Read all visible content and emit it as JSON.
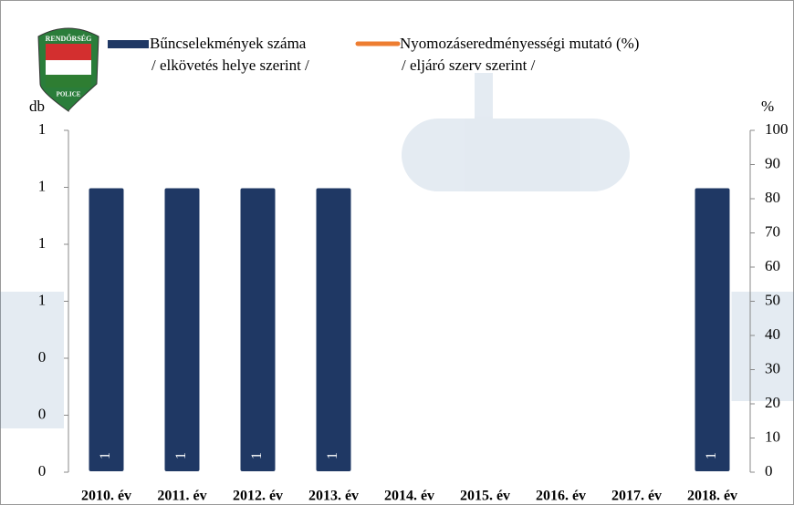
{
  "logo": {
    "top": "RENDŐRSÉG",
    "bottom": "POLICE"
  },
  "chart_data": {
    "type": "bar",
    "y_label": "db",
    "y2_label": "%",
    "categories": [
      "2010. év",
      "2011. év",
      "2012. év",
      "2013. év",
      "2014. év",
      "2015. év",
      "2016. év",
      "2017. év",
      "2018. év"
    ],
    "series": [
      {
        "name": [
          "Bűncselekmények száma",
          "/ elkövetés helye szerint /"
        ],
        "color": "#1f3864",
        "values": [
          1,
          1,
          1,
          1,
          null,
          null,
          null,
          null,
          1
        ]
      },
      {
        "name": [
          "Nyomozáseredményességi mutató (%)",
          "/ eljáró szerv szerint /"
        ],
        "color": "#ed7d31",
        "axis": "y2",
        "kind": "line",
        "values": [
          null,
          null,
          null,
          null,
          null,
          null,
          null,
          null,
          null
        ]
      }
    ],
    "ylim": [
      0,
      1.2
    ],
    "yticks": [
      0,
      {
        "value": 0.2,
        "label": "0"
      },
      {
        "value": 0.4,
        "label": "0"
      },
      {
        "value": 0.6,
        "label": "1"
      },
      {
        "value": 0.8,
        "label": "1"
      },
      1,
      {
        "value": 1.2,
        "label": "1"
      }
    ],
    "y2lim": [
      0,
      100
    ],
    "y2ticks": [
      0,
      10,
      20,
      30,
      40,
      50,
      60,
      70,
      80,
      90,
      100
    ]
  }
}
